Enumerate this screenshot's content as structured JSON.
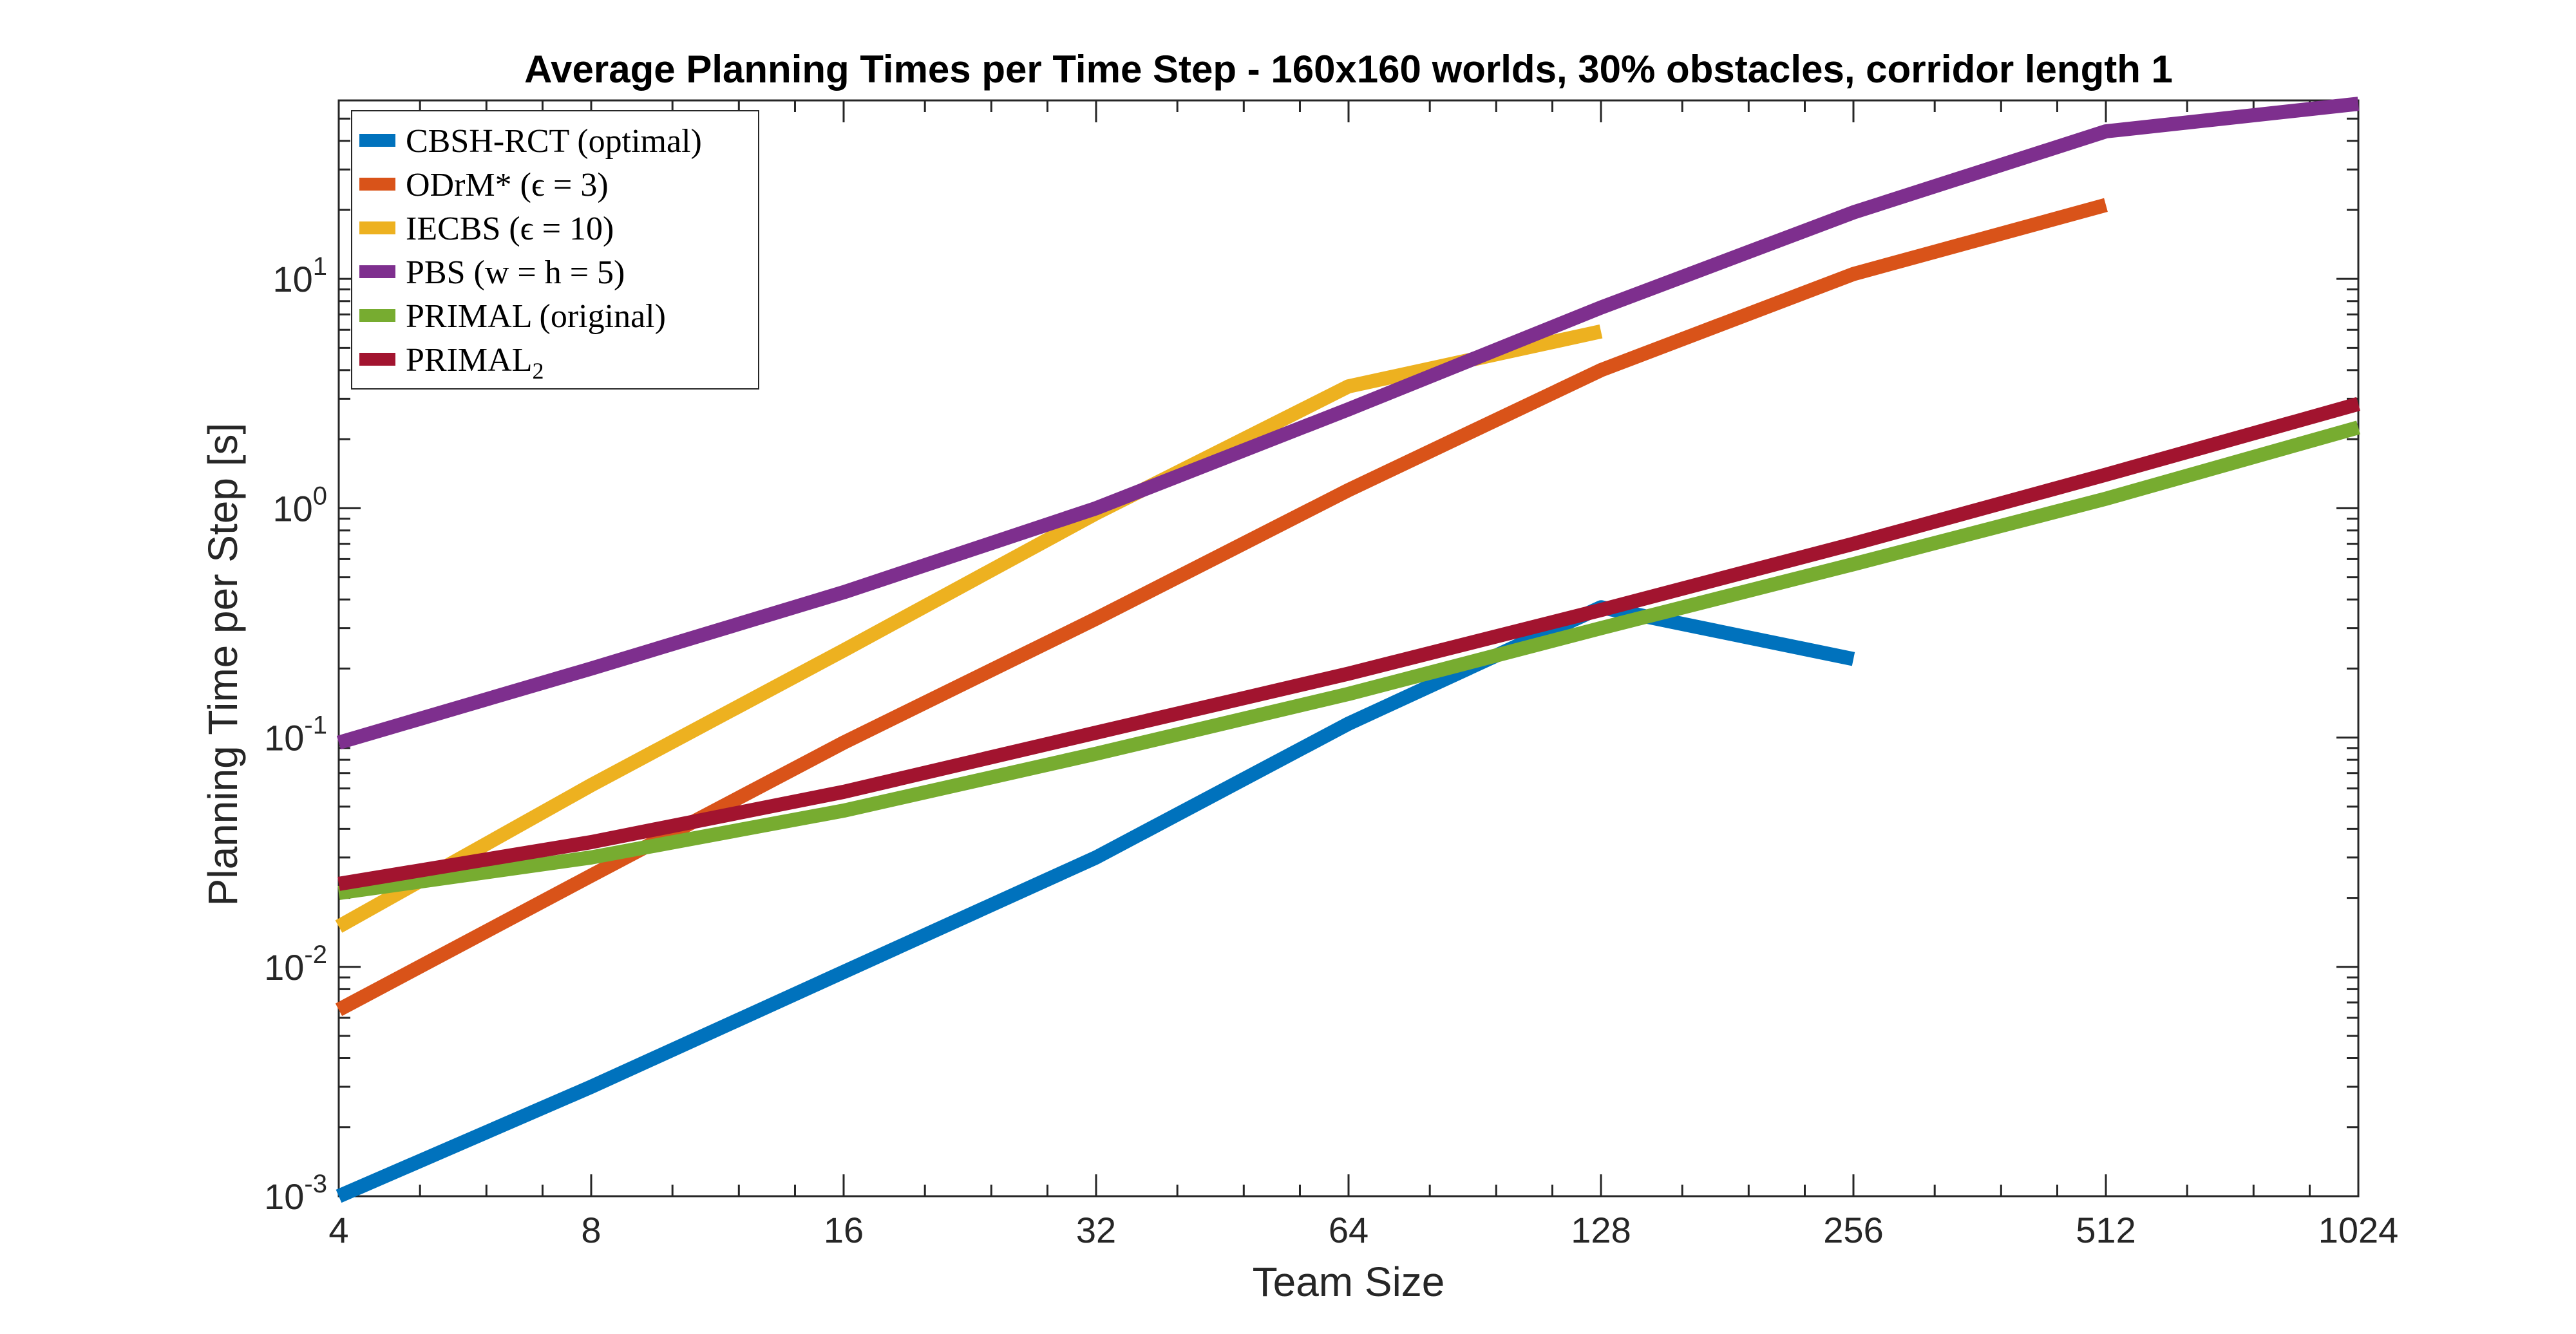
{
  "chart_data": {
    "type": "line",
    "title": "Average Planning Times per Time Step - 160x160 worlds, 30% obstacles, corridor length 1",
    "xlabel": "Team Size",
    "ylabel": "Planning Time per Step [s]",
    "xscale": "log2",
    "yscale": "log10",
    "xlim": [
      4,
      1024
    ],
    "ylim": [
      0.001,
      60
    ],
    "xticks": [
      4,
      8,
      16,
      32,
      64,
      128,
      256,
      512,
      1024
    ],
    "xtick_labels": [
      "4",
      "8",
      "16",
      "32",
      "64",
      "128",
      "256",
      "512",
      "1024"
    ],
    "yticks": [
      0.001,
      0.01,
      0.1,
      1,
      10
    ],
    "ytick_labels": [
      {
        "base": "10",
        "exp": "-3"
      },
      {
        "base": "10",
        "exp": "-2"
      },
      {
        "base": "10",
        "exp": "-1"
      },
      {
        "base": "10",
        "exp": "0"
      },
      {
        "base": "10",
        "exp": "1"
      }
    ],
    "grid": false,
    "legend_position": "top-left",
    "series": [
      {
        "name": "CBSH-RCT (optimal)",
        "color": "#0072BD",
        "x": [
          4,
          8,
          16,
          32,
          64,
          128,
          256
        ],
        "y": [
          0.001,
          0.003,
          0.0095,
          0.03,
          0.115,
          0.37,
          0.22
        ]
      },
      {
        "name": "ODrM* (ϵ = 3)",
        "color": "#D95319",
        "x": [
          4,
          8,
          16,
          32,
          64,
          128,
          256,
          512
        ],
        "y": [
          0.0065,
          0.025,
          0.095,
          0.33,
          1.2,
          4.0,
          10.5,
          21
        ]
      },
      {
        "name": "IECBS (ϵ = 10)",
        "color": "#EDB120",
        "x": [
          4,
          8,
          16,
          32,
          64,
          128
        ],
        "y": [
          0.015,
          0.062,
          0.24,
          0.95,
          3.4,
          5.9
        ]
      },
      {
        "name": "PBS (w = h = 5)",
        "color": "#7E2F8E",
        "x": [
          4,
          8,
          16,
          32,
          64,
          128,
          256,
          512,
          1024
        ],
        "y": [
          0.095,
          0.2,
          0.43,
          1.0,
          2.7,
          7.5,
          19.5,
          44,
          58
        ]
      },
      {
        "name": "PRIMAL (original)",
        "color": "#77AC30",
        "x": [
          4,
          8,
          16,
          32,
          64,
          128,
          256,
          512,
          1024
        ],
        "y": [
          0.021,
          0.03,
          0.048,
          0.085,
          0.155,
          0.3,
          0.57,
          1.1,
          2.25
        ]
      },
      {
        "name": "PRIMAL",
        "name_subscript": "2",
        "color": "#A2142F",
        "x": [
          4,
          8,
          16,
          32,
          64,
          128,
          256,
          512,
          1024
        ],
        "y": [
          0.023,
          0.035,
          0.058,
          0.105,
          0.19,
          0.36,
          0.7,
          1.4,
          2.85
        ]
      }
    ]
  }
}
